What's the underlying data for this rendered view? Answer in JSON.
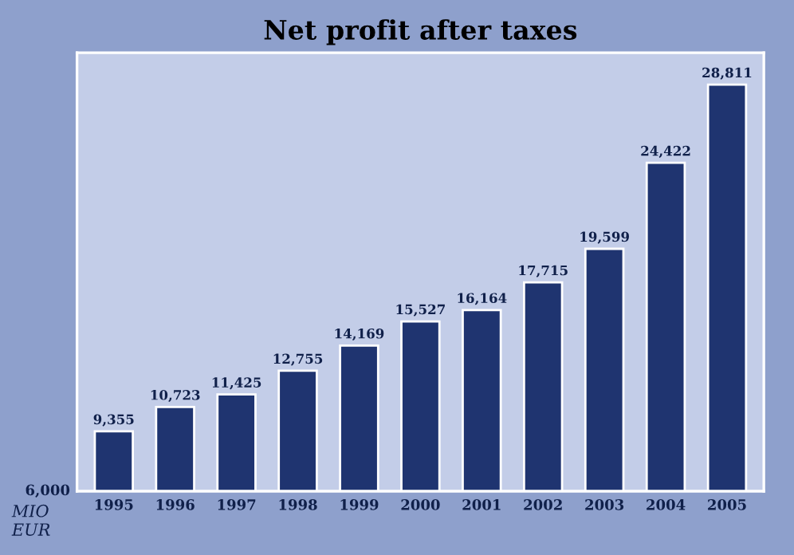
{
  "chart_data": {
    "type": "bar",
    "title": "Net profit after taxes",
    "ylabel": "MIO\nEUR",
    "categories": [
      "1995",
      "1996",
      "1997",
      "1998",
      "1999",
      "2000",
      "2001",
      "2002",
      "2003",
      "2004",
      "2005"
    ],
    "values": [
      9355,
      10723,
      11425,
      12755,
      14169,
      15527,
      16164,
      17715,
      19599,
      24422,
      28811
    ],
    "value_labels": [
      "9,355",
      "10,723",
      "11,425",
      "12,755",
      "14,169",
      "15,527",
      "16,164",
      "17,715",
      "19,599",
      "24,422",
      "28,811"
    ],
    "color": "#1f3470",
    "ylim": [
      6000,
      30600
    ],
    "annotations": [
      "6,000"
    ],
    "grid": false
  }
}
